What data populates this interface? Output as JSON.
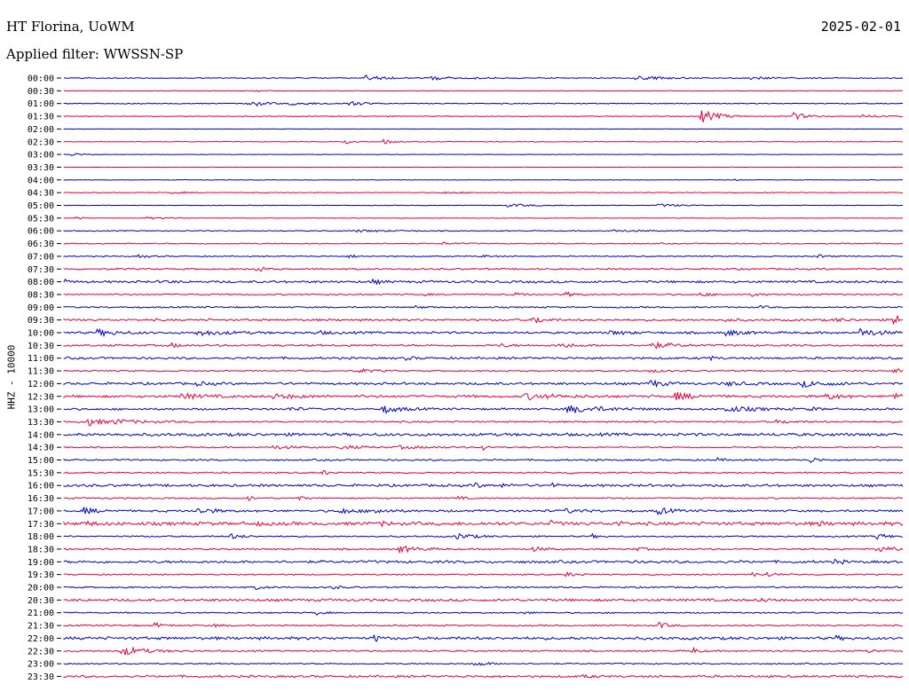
{
  "header": {
    "station": "HT Florina, UoWM",
    "date": "2025-02-01",
    "filter": "Applied filter: WWSSN-SP"
  },
  "chart_data": {
    "type": "line",
    "ylabel": "HHZ - 10000",
    "colors": {
      "even_rows": "#0000c8",
      "odd_rows": "#e8003c"
    },
    "rows": [
      {
        "label": "00:00",
        "noise": 0.6,
        "events": [
          [
            0.36,
            3,
            20
          ],
          [
            0.43,
            2,
            40
          ],
          [
            0.68,
            2,
            30
          ],
          [
            0.82,
            1.5,
            25
          ]
        ]
      },
      {
        "label": "00:30",
        "noise": 0.3,
        "events": [
          [
            0.23,
            1.2,
            8
          ]
        ]
      },
      {
        "label": "01:00",
        "noise": 0.6,
        "events": [
          [
            0.22,
            4,
            14
          ],
          [
            0.34,
            3,
            14
          ],
          [
            0.27,
            1.5,
            30
          ]
        ]
      },
      {
        "label": "01:30",
        "noise": 0.5,
        "events": [
          [
            0.76,
            7,
            18
          ],
          [
            0.87,
            4,
            15
          ],
          [
            0.95,
            1.5,
            30
          ]
        ]
      },
      {
        "label": "02:00",
        "noise": 0.3,
        "events": []
      },
      {
        "label": "02:30",
        "noise": 0.4,
        "events": [
          [
            0.335,
            2.5,
            10
          ],
          [
            0.38,
            3,
            10
          ]
        ]
      },
      {
        "label": "03:00",
        "noise": 0.3,
        "events": [
          [
            0.01,
            1.5,
            14
          ]
        ]
      },
      {
        "label": "03:30",
        "noise": 0.2,
        "events": []
      },
      {
        "label": "04:00",
        "noise": 0.3,
        "events": [
          [
            0.8,
            1.2,
            6
          ]
        ]
      },
      {
        "label": "04:30",
        "noise": 0.5,
        "events": [
          [
            0.13,
            1,
            20
          ],
          [
            0.45,
            1,
            30
          ]
        ]
      },
      {
        "label": "05:00",
        "noise": 0.4,
        "events": [
          [
            0.53,
            1.5,
            30
          ],
          [
            0.71,
            1.5,
            25
          ]
        ]
      },
      {
        "label": "05:30",
        "noise": 0.3,
        "events": [
          [
            0.015,
            1.5,
            8
          ],
          [
            0.1,
            1.2,
            18
          ]
        ]
      },
      {
        "label": "06:00",
        "noise": 0.6,
        "events": [
          [
            0.65,
            1.2,
            30
          ],
          [
            0.35,
            1.2,
            30
          ]
        ]
      },
      {
        "label": "06:30",
        "noise": 0.7,
        "events": [
          [
            0.45,
            1.5,
            12
          ]
        ]
      },
      {
        "label": "07:00",
        "noise": 0.7,
        "events": [
          [
            0.09,
            1.5,
            12
          ],
          [
            0.34,
            1.5,
            10
          ],
          [
            0.5,
            1.2,
            10
          ],
          [
            0.9,
            1.3,
            10
          ]
        ]
      },
      {
        "label": "07:30",
        "noise": 1.0,
        "events": [
          [
            0.23,
            3,
            8
          ]
        ]
      },
      {
        "label": "08:00",
        "noise": 1.4,
        "events": [
          [
            0.0,
            2,
            6
          ],
          [
            0.12,
            1.8,
            6
          ],
          [
            0.37,
            2,
            8
          ]
        ]
      },
      {
        "label": "08:30",
        "noise": 0.8,
        "events": [
          [
            0.54,
            2,
            8
          ],
          [
            0.6,
            2.5,
            8
          ],
          [
            0.76,
            2,
            10
          ],
          [
            0.82,
            2,
            10
          ],
          [
            0.43,
            1.2,
            6
          ]
        ]
      },
      {
        "label": "09:00",
        "noise": 0.9,
        "events": [
          [
            0.42,
            1.5,
            10
          ],
          [
            0.83,
            1.2,
            10
          ]
        ]
      },
      {
        "label": "09:30",
        "noise": 1.3,
        "events": [
          [
            0.56,
            4,
            10
          ],
          [
            0.79,
            2,
            8
          ],
          [
            0.99,
            6,
            14
          ],
          [
            0.92,
            2,
            10
          ]
        ]
      },
      {
        "label": "10:00",
        "noise": 1.3,
        "events": [
          [
            0.04,
            3,
            22
          ],
          [
            0.16,
            2.5,
            30
          ],
          [
            0.79,
            3,
            16
          ],
          [
            0.95,
            4,
            20
          ],
          [
            0.65,
            2,
            20
          ],
          [
            0.3,
            1.5,
            20
          ]
        ]
      },
      {
        "label": "10:30",
        "noise": 1.2,
        "events": [
          [
            0.13,
            2,
            8
          ],
          [
            0.59,
            2.5,
            16
          ],
          [
            0.7,
            3,
            24
          ],
          [
            0.52,
            2,
            10
          ]
        ]
      },
      {
        "label": "11:00",
        "noise": 1.3,
        "events": [
          [
            0.41,
            2,
            6
          ],
          [
            0.77,
            2,
            6
          ]
        ]
      },
      {
        "label": "11:30",
        "noise": 0.8,
        "events": [
          [
            0.35,
            2.5,
            16
          ],
          [
            0.99,
            2.5,
            10
          ],
          [
            0.7,
            1.5,
            12
          ]
        ]
      },
      {
        "label": "12:00",
        "noise": 1.4,
        "events": [
          [
            0.7,
            4,
            12
          ],
          [
            0.88,
            3,
            30
          ],
          [
            0.79,
            2,
            20
          ],
          [
            0.16,
            1.5,
            16
          ]
        ]
      },
      {
        "label": "12:30",
        "noise": 1.5,
        "events": [
          [
            0.14,
            3,
            20
          ],
          [
            0.55,
            3,
            30
          ],
          [
            0.73,
            3.5,
            20
          ],
          [
            0.91,
            3,
            14
          ],
          [
            0.99,
            3.5,
            10
          ],
          [
            0.25,
            2,
            30
          ]
        ]
      },
      {
        "label": "13:00",
        "noise": 1.2,
        "events": [
          [
            0.38,
            4,
            20
          ],
          [
            0.6,
            4,
            40
          ],
          [
            0.79,
            3,
            30
          ],
          [
            0.27,
            2,
            10
          ],
          [
            0.89,
            2,
            10
          ]
        ]
      },
      {
        "label": "13:30",
        "noise": 1.0,
        "events": [
          [
            0.025,
            6,
            14
          ],
          [
            0.06,
            2.5,
            30
          ],
          [
            0.85,
            1.5,
            20
          ]
        ]
      },
      {
        "label": "14:00",
        "noise": 1.8,
        "events": []
      },
      {
        "label": "14:30",
        "noise": 0.8,
        "events": [
          [
            0.25,
            2,
            24
          ],
          [
            0.33,
            2,
            24
          ],
          [
            0.5,
            3,
            4
          ],
          [
            0.4,
            1.5,
            30
          ],
          [
            0.86,
            1.5,
            10
          ]
        ]
      },
      {
        "label": "15:00",
        "noise": 1.0,
        "events": [
          [
            0.89,
            3,
            8
          ],
          [
            0.78,
            2,
            5
          ]
        ]
      },
      {
        "label": "15:30",
        "noise": 0.9,
        "events": [
          [
            0.31,
            2.5,
            6
          ],
          [
            0.6,
            1.5,
            6
          ]
        ]
      },
      {
        "label": "16:00",
        "noise": 1.5,
        "events": [
          [
            0.49,
            2.5,
            6
          ],
          [
            0.52,
            2.5,
            6
          ],
          [
            0.58,
            2.5,
            6
          ]
        ]
      },
      {
        "label": "16:30",
        "noise": 0.9,
        "events": [
          [
            0.22,
            2.5,
            6
          ],
          [
            0.28,
            2,
            6
          ],
          [
            0.47,
            2,
            6
          ]
        ]
      },
      {
        "label": "17:00",
        "noise": 1.3,
        "events": [
          [
            0.025,
            3,
            14
          ],
          [
            0.16,
            4,
            14
          ],
          [
            0.33,
            3,
            14
          ],
          [
            0.37,
            3,
            14
          ],
          [
            0.71,
            3.5,
            12
          ],
          [
            0.6,
            2,
            16
          ]
        ]
      },
      {
        "label": "17:30",
        "noise": 2.0,
        "events": [
          [
            0.23,
            2,
            6
          ],
          [
            0.38,
            2,
            6
          ],
          [
            0.58,
            2.5,
            8
          ],
          [
            0.66,
            2,
            6
          ],
          [
            0.9,
            2,
            6
          ],
          [
            0.03,
            2,
            6
          ]
        ]
      },
      {
        "label": "18:00",
        "noise": 0.9,
        "events": [
          [
            0.2,
            2.5,
            12
          ],
          [
            0.47,
            3.5,
            16
          ],
          [
            0.97,
            3,
            14
          ],
          [
            0.63,
            2,
            6
          ]
        ]
      },
      {
        "label": "18:30",
        "noise": 1.0,
        "events": [
          [
            0.4,
            3.5,
            20
          ],
          [
            0.56,
            2,
            16
          ],
          [
            0.97,
            3,
            20
          ],
          [
            0.68,
            1.5,
            16
          ]
        ]
      },
      {
        "label": "19:00",
        "noise": 1.6,
        "events": [
          [
            0.92,
            2.5,
            6
          ]
        ]
      },
      {
        "label": "19:30",
        "noise": 0.8,
        "events": [
          [
            0.6,
            2,
            12
          ],
          [
            0.82,
            2,
            10
          ],
          [
            0.84,
            2,
            10
          ]
        ]
      },
      {
        "label": "20:00",
        "noise": 0.9,
        "events": [
          [
            0.23,
            2,
            10
          ],
          [
            0.32,
            1.5,
            10
          ]
        ]
      },
      {
        "label": "20:30",
        "noise": 1.5,
        "events": [
          [
            0.83,
            3,
            6
          ]
        ]
      },
      {
        "label": "21:00",
        "noise": 0.8,
        "events": [
          [
            0.3,
            2.5,
            8
          ],
          [
            0.55,
            1.2,
            10
          ]
        ]
      },
      {
        "label": "21:30",
        "noise": 0.9,
        "events": [
          [
            0.11,
            2,
            12
          ],
          [
            0.71,
            3,
            10
          ],
          [
            0.18,
            1.5,
            8
          ]
        ]
      },
      {
        "label": "22:00",
        "noise": 1.7,
        "events": [
          [
            0.37,
            3.5,
            6
          ],
          [
            0.92,
            2,
            6
          ]
        ]
      },
      {
        "label": "22:30",
        "noise": 0.9,
        "events": [
          [
            0.07,
            5,
            24
          ],
          [
            0.75,
            3.5,
            6
          ],
          [
            0.96,
            2,
            6
          ]
        ]
      },
      {
        "label": "23:00",
        "noise": 0.8,
        "events": [
          [
            0.49,
            2.5,
            14
          ]
        ]
      },
      {
        "label": "23:30",
        "noise": 1.3,
        "events": [
          [
            0.62,
            1.5,
            10
          ]
        ]
      }
    ]
  }
}
